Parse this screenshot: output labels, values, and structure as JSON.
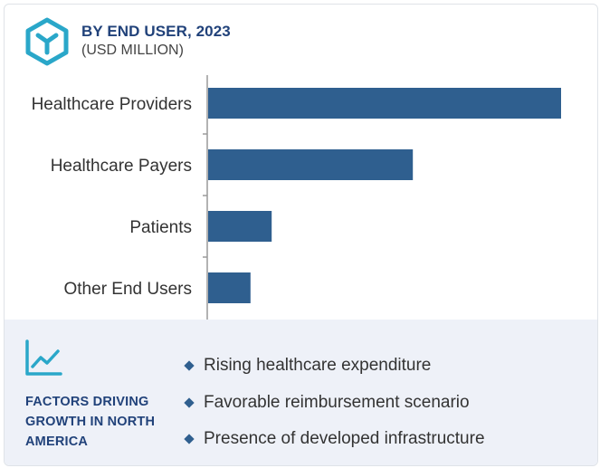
{
  "header": {
    "title": "BY END USER, 2023",
    "subtitle": "(USD MILLION)",
    "icon": "cube-logo-icon"
  },
  "chart_data": {
    "type": "bar",
    "orientation": "horizontal",
    "title": "BY END USER, 2023",
    "subtitle": "(USD MILLION)",
    "categories": [
      "Healthcare Providers",
      "Healthcare Payers",
      "Patients",
      "Other End Users"
    ],
    "values": [
      100,
      58,
      18,
      12
    ],
    "value_scale": "relative (no axis ticks shown)",
    "xlabel": "",
    "ylabel": "",
    "grid": false,
    "legend": "none",
    "bar_color": "#2f5f8f"
  },
  "factors": {
    "icon": "trend-chart-icon",
    "title": "FACTORS DRIVING GROWTH IN NORTH AMERICA",
    "items": [
      "Rising healthcare expenditure",
      "Favorable reimbursement scenario",
      "Presence of developed infrastructure"
    ]
  },
  "colors": {
    "accent": "#21427a",
    "icon": "#2aa7c9",
    "bar": "#2f5f8f",
    "panel": "#eef1f8"
  }
}
